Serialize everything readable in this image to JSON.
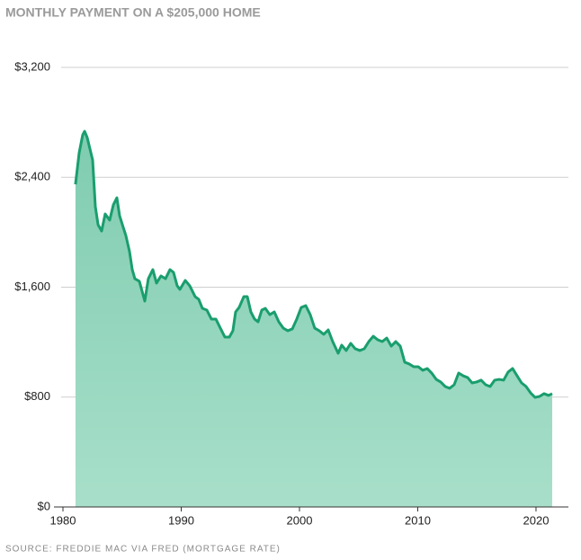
{
  "chart_data": {
    "type": "area",
    "title": "MONTHLY PAYMENT ON A $205,000 HOME",
    "source": "SOURCE: FREDDIE MAC VIA FRED (MORTGAGE RATE)",
    "color": "#1a9e6e",
    "fill_top": "#7fccb0",
    "fill_bottom": "#a8dfca",
    "grid": true,
    "xlim": [
      1979.24,
      2022.74
    ],
    "xticks": [
      1980,
      1990,
      2000,
      2010,
      2020
    ],
    "ylim": [
      0,
      3200
    ],
    "yticks": [
      {
        "value": 0,
        "label": "$0"
      },
      {
        "value": 800,
        "label": "$800"
      },
      {
        "value": 1600,
        "label": "$1,600"
      },
      {
        "value": 2400,
        "label": "$2,400"
      },
      {
        "value": 3200,
        "label": "$3,200"
      }
    ],
    "x": [
      1981.06,
      1981.37,
      1981.67,
      1981.83,
      1982.05,
      1982.51,
      1982.74,
      1982.97,
      1983.27,
      1983.57,
      1983.95,
      1984.26,
      1984.56,
      1984.79,
      1985.1,
      1985.32,
      1985.63,
      1985.86,
      1986.08,
      1986.46,
      1986.92,
      1987.22,
      1987.6,
      1987.91,
      1988.29,
      1988.67,
      1989.05,
      1989.35,
      1989.66,
      1989.89,
      1990.34,
      1990.72,
      1991.18,
      1991.48,
      1991.79,
      1992.17,
      1992.55,
      1992.93,
      1993.31,
      1993.69,
      1994.07,
      1994.37,
      1994.6,
      1994.9,
      1995.29,
      1995.59,
      1995.89,
      1996.2,
      1996.5,
      1996.81,
      1997.11,
      1997.49,
      1997.87,
      1998.25,
      1998.63,
      1999.01,
      1999.39,
      1999.77,
      2000.15,
      2000.53,
      2000.91,
      2001.29,
      2001.67,
      2002.05,
      2002.43,
      2002.81,
      2003.27,
      2003.57,
      2003.95,
      2004.33,
      2004.71,
      2005.1,
      2005.48,
      2005.86,
      2006.24,
      2006.62,
      2007,
      2007.38,
      2007.76,
      2008.14,
      2008.52,
      2008.9,
      2009.28,
      2009.66,
      2010.04,
      2010.42,
      2010.8,
      2011.18,
      2011.56,
      2011.94,
      2012.32,
      2012.7,
      2013.08,
      2013.46,
      2013.84,
      2014.22,
      2014.6,
      2014.98,
      2015.36,
      2015.74,
      2016.12,
      2016.5,
      2016.88,
      2017.26,
      2017.64,
      2018.02,
      2018.4,
      2018.78,
      2019.16,
      2019.54,
      2019.92,
      2020.3,
      2020.68,
      2021.06,
      2021.37
    ],
    "values": [
      2349,
      2578,
      2709,
      2735,
      2690,
      2526,
      2186,
      2055,
      2009,
      2133,
      2088,
      2199,
      2251,
      2120,
      2035,
      1976,
      1859,
      1728,
      1662,
      1643,
      1499,
      1662,
      1728,
      1630,
      1682,
      1662,
      1728,
      1708,
      1610,
      1584,
      1649,
      1610,
      1531,
      1512,
      1446,
      1433,
      1368,
      1368,
      1302,
      1237,
      1237,
      1283,
      1420,
      1453,
      1531,
      1531,
      1420,
      1368,
      1348,
      1433,
      1446,
      1400,
      1420,
      1348,
      1302,
      1283,
      1296,
      1368,
      1453,
      1466,
      1400,
      1302,
      1283,
      1257,
      1289,
      1204,
      1119,
      1178,
      1139,
      1191,
      1152,
      1139,
      1152,
      1204,
      1243,
      1217,
      1204,
      1230,
      1171,
      1204,
      1171,
      1054,
      1041,
      1021,
      1021,
      995,
      1008,
      975,
      929,
      910,
      877,
      864,
      890,
      975,
      955,
      942,
      903,
      910,
      923,
      890,
      877,
      923,
      929,
      923,
      982,
      1008,
      955,
      903,
      877,
      831,
      798,
      805,
      825,
      812,
      825
    ]
  }
}
